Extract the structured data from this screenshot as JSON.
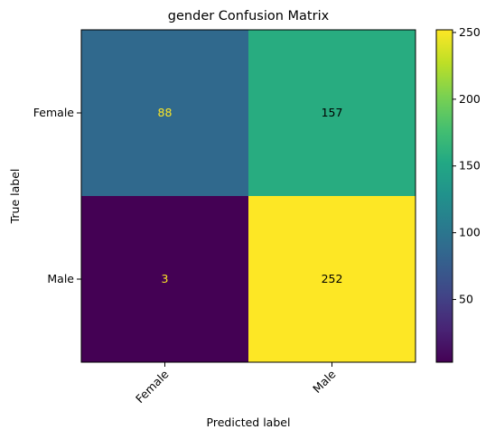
{
  "chart_data": {
    "type": "heatmap",
    "title": "gender Confusion Matrix",
    "xlabel": "Predicted label",
    "ylabel": "True label",
    "x_categories": [
      "Female",
      "Male"
    ],
    "y_categories": [
      "Female",
      "Male"
    ],
    "values": [
      [
        88,
        157
      ],
      [
        3,
        252
      ]
    ],
    "colormap": "viridis",
    "colorbar": {
      "vmin": 3,
      "vmax": 252,
      "ticks": [
        50,
        100,
        150,
        200,
        250
      ]
    },
    "grid": false,
    "light_text_color": "#fde725",
    "dark_text_color": "#000000"
  }
}
